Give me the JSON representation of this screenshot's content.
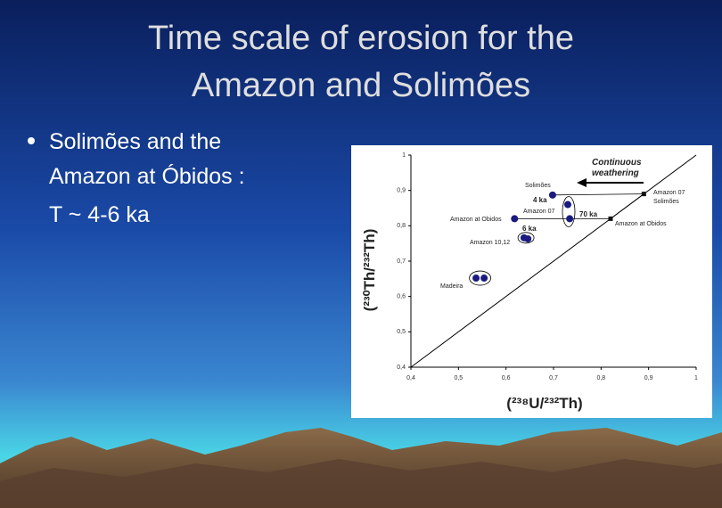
{
  "slide": {
    "title_lines": [
      "Time scale of erosion for the",
      "Amazon and Solimões"
    ],
    "bullet_lines": [
      "Solimões and the",
      "Amazon at Óbidos :",
      "T ~ 4-6 ka"
    ]
  },
  "chart_data": {
    "type": "scatter",
    "x_label": "(²³⁸U/²³²Th)",
    "y_label": "(²³⁰Th/²³²Th)",
    "series": [
      {
        "marker": "circle",
        "color": "#1a1a80",
        "x": [
          0.698,
          0.73,
          0.734,
          0.618,
          0.638,
          0.646,
          0.537,
          0.554
        ],
        "values": [
          0.887,
          0.86,
          0.82,
          0.82,
          0.766,
          0.763,
          0.652,
          0.652
        ]
      },
      {
        "marker": "square",
        "color": "#111111",
        "x": [
          0.89,
          0.82
        ],
        "values": [
          0.89,
          0.82
        ]
      }
    ],
    "annotations": [
      "Continuous",
      "weathering",
      "Solimões",
      "4 ka",
      "Amazon 07",
      "70 ka",
      "Amazon at Obidos",
      "6 ka",
      "Amazon 10,12",
      "Madeira",
      "Amazon 07",
      "Solimões",
      "Amazon at Obidos"
    ],
    "xlim": [
      0.4,
      1
    ],
    "ylim": [
      0.4,
      1
    ],
    "xticks": [
      {
        "value": 0.4,
        "label": "0,4"
      },
      {
        "value": 0.5,
        "label": "0,5"
      },
      {
        "value": 0.6,
        "label": "0,6"
      },
      {
        "value": 0.7,
        "label": "0,7"
      },
      {
        "value": 0.8,
        "label": "0,8"
      },
      {
        "value": 0.9,
        "label": "0,9"
      },
      1
    ],
    "yticks": [
      {
        "value": 0.4,
        "label": "0,4"
      },
      {
        "value": 0.5,
        "label": "0,5"
      },
      {
        "value": 0.6,
        "label": "0,6"
      },
      {
        "value": 0.7,
        "label": "0,7"
      },
      {
        "value": 0.8,
        "label": "0,8"
      },
      {
        "value": 0.9,
        "label": "0,9"
      },
      1
    ],
    "grid": false
  }
}
